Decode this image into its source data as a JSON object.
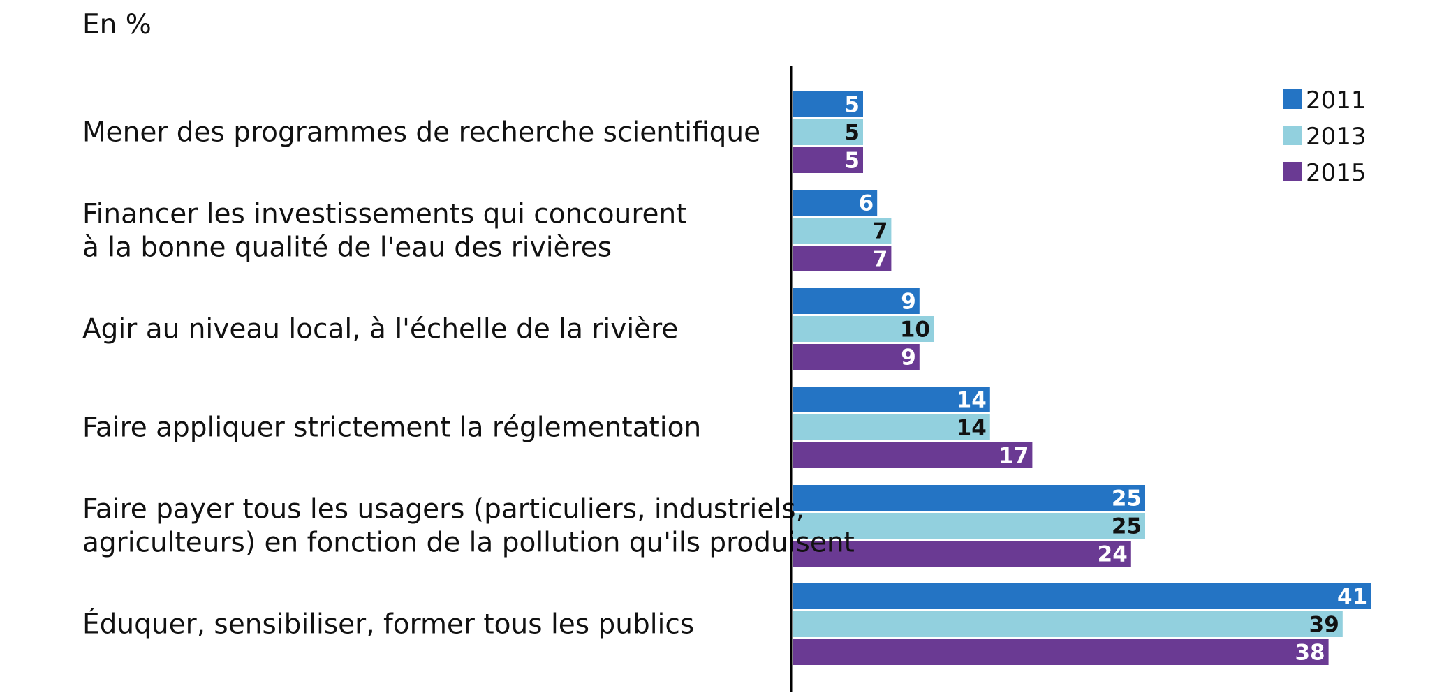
{
  "chart_data": {
    "type": "bar",
    "orientation": "horizontal",
    "unit_label": "En %",
    "categories": [
      [
        "Mener des programmes de recherche scientifique"
      ],
      [
        "Financer les investissements qui concourent",
        "à la bonne qualité de l'eau des rivières"
      ],
      [
        "Agir au niveau local, à l'échelle de la rivière"
      ],
      [
        "Faire appliquer strictement la réglementation"
      ],
      [
        "Faire payer tous les usagers (particuliers, industriels,",
        "agriculteurs) en fonction de la pollution qu'ils produisent"
      ],
      [
        "Éduquer, sensibiliser, former tous les publics"
      ]
    ],
    "series": [
      {
        "name": "2011",
        "color": "#2474c4",
        "label_color": "#ffffff",
        "values": [
          5,
          6,
          9,
          14,
          25,
          41
        ]
      },
      {
        "name": "2013",
        "color": "#92d0de",
        "label_color": "#111111",
        "values": [
          5,
          7,
          10,
          14,
          25,
          39
        ]
      },
      {
        "name": "2015",
        "color": "#6a3a93",
        "label_color": "#ffffff",
        "values": [
          5,
          7,
          9,
          17,
          24,
          38
        ]
      }
    ],
    "xlim": [
      0,
      41
    ],
    "grid": false,
    "legend_position": "top-right"
  }
}
